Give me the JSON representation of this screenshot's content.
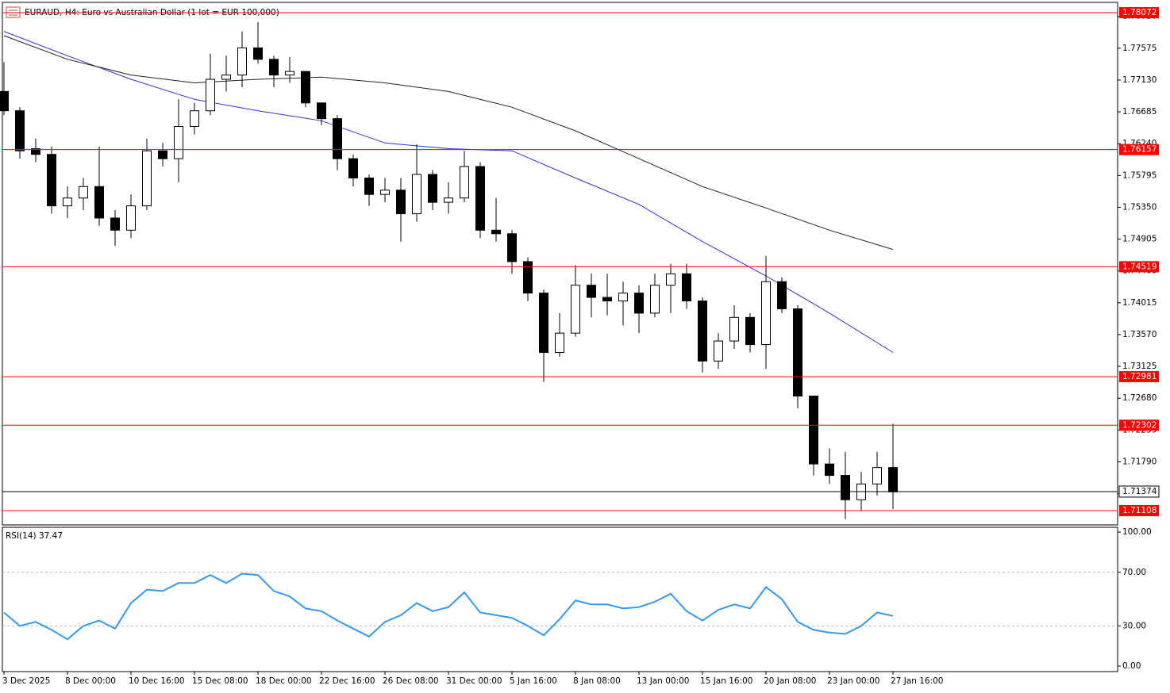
{
  "chart_data": [
    {
      "type": "candlestick",
      "title": "EURAUD, H4:  Euro vs Australian Dollar (1 lot = EUR 100,000)",
      "xlim": [
        -0.1,
        70.15
      ],
      "ylim": [
        1.70908,
        1.78216
      ],
      "yticks": [
        {
          "value": 1.7802,
          "label": "1.78020"
        },
        1.77575,
        {
          "value": 1.7713,
          "label": "1.77130"
        },
        1.76685,
        {
          "value": 1.7624,
          "label": "1.76240"
        },
        1.75795,
        {
          "value": 1.7535,
          "label": "1.75350"
        },
        1.74905,
        {
          "value": 1.7446,
          "label": "1.74460"
        },
        1.74015,
        {
          "value": 1.7357,
          "label": "1.73570"
        },
        1.73125,
        {
          "value": 1.7268,
          "label": "1.72680"
        },
        1.72235,
        {
          "value": 1.7179,
          "label": "1.71790"
        },
        1.71345
      ],
      "xticks": [
        {
          "value": 0,
          "label": "3 Dec 2025"
        },
        {
          "value": 4,
          "label": "8 Dec 00:00"
        },
        {
          "value": 8,
          "label": "10 Dec 16:00"
        },
        {
          "value": 12,
          "label": "15 Dec 08:00"
        },
        {
          "value": 16,
          "label": "18 Dec 00:00"
        },
        {
          "value": 20,
          "label": "22 Dec 16:00"
        },
        {
          "value": 24,
          "label": "26 Dec 08:00"
        },
        {
          "value": 28,
          "label": "31 Dec 00:00"
        },
        {
          "value": 32,
          "label": "5 Jan 16:00"
        },
        {
          "value": 36,
          "label": "8 Jan 08:00"
        },
        {
          "value": 40,
          "label": "13 Jan 00:00"
        },
        {
          "value": 44,
          "label": "15 Jan 16:00"
        },
        {
          "value": 48,
          "label": "20 Jan 08:00"
        },
        {
          "value": 52,
          "label": "23 Jan 00:00"
        },
        {
          "value": 56,
          "label": "27 Jan 16:00"
        }
      ],
      "ohlc": [
        [
          1.7697,
          1.7738,
          1.7664,
          1.767
        ],
        [
          1.767,
          1.7675,
          1.7603,
          1.7614
        ],
        [
          1.7617,
          1.7631,
          1.7598,
          1.7609
        ],
        [
          1.7609,
          1.762,
          1.7526,
          1.7537
        ],
        [
          1.7537,
          1.7564,
          1.752,
          1.7548
        ],
        [
          1.7548,
          1.7576,
          1.7531,
          1.7564
        ],
        [
          1.7564,
          1.762,
          1.7509,
          1.752
        ],
        [
          1.752,
          1.7531,
          1.7481,
          1.7503
        ],
        [
          1.7503,
          1.7553,
          1.7492,
          1.7537
        ],
        [
          1.7537,
          1.7631,
          1.7531,
          1.7614
        ],
        [
          1.7614,
          1.7625,
          1.7592,
          1.7603
        ],
        [
          1.7603,
          1.7686,
          1.757,
          1.7648
        ],
        [
          1.7648,
          1.7681,
          1.7637,
          1.767
        ],
        [
          1.767,
          1.775,
          1.7664,
          1.7714
        ],
        [
          1.7714,
          1.7747,
          1.7697,
          1.772
        ],
        [
          1.772,
          1.7781,
          1.7703,
          1.7758
        ],
        [
          1.7758,
          1.7794,
          1.7736,
          1.7742
        ],
        [
          1.7742,
          1.7747,
          1.7703,
          1.772
        ],
        [
          1.772,
          1.7745,
          1.7709,
          1.7725
        ],
        [
          1.7725,
          1.7725,
          1.7675,
          1.7681
        ],
        [
          1.7681,
          1.7681,
          1.765,
          1.7659
        ],
        [
          1.7659,
          1.7664,
          1.7587,
          1.7603
        ],
        [
          1.7603,
          1.7609,
          1.7564,
          1.7576
        ],
        [
          1.7576,
          1.7581,
          1.7537,
          1.7553
        ],
        [
          1.7553,
          1.7576,
          1.7542,
          1.7559
        ],
        [
          1.7559,
          1.7576,
          1.7487,
          1.7526
        ],
        [
          1.7526,
          1.7623,
          1.7515,
          1.7581
        ],
        [
          1.7581,
          1.7587,
          1.7531,
          1.7542
        ],
        [
          1.7542,
          1.757,
          1.7526,
          1.7548
        ],
        [
          1.7548,
          1.7614,
          1.7542,
          1.7592
        ],
        [
          1.7592,
          1.7598,
          1.7492,
          1.7503
        ],
        [
          1.7503,
          1.7548,
          1.7487,
          1.7498
        ],
        [
          1.7498,
          1.7503,
          1.7442,
          1.7459
        ],
        [
          1.7459,
          1.7465,
          1.7404,
          1.7415
        ],
        [
          1.7415,
          1.742,
          1.7291,
          1.7332
        ],
        [
          1.7332,
          1.7387,
          1.7326,
          1.7359
        ],
        [
          1.7359,
          1.7454,
          1.7354,
          1.7426
        ],
        [
          1.7426,
          1.7442,
          1.7381,
          1.7409
        ],
        [
          1.7409,
          1.7442,
          1.7384,
          1.7404
        ],
        [
          1.7404,
          1.7431,
          1.737,
          1.7415
        ],
        [
          1.7415,
          1.7426,
          1.7359,
          1.7387
        ],
        [
          1.7387,
          1.7442,
          1.7381,
          1.7426
        ],
        [
          1.7426,
          1.7456,
          1.7387,
          1.7442
        ],
        [
          1.7442,
          1.7456,
          1.7393,
          1.7404
        ],
        [
          1.7404,
          1.7409,
          1.7304,
          1.732
        ],
        [
          1.732,
          1.7359,
          1.7309,
          1.7348
        ],
        [
          1.7348,
          1.7398,
          1.7337,
          1.7381
        ],
        [
          1.7381,
          1.7387,
          1.7332,
          1.7343
        ],
        [
          1.7343,
          1.7467,
          1.7309,
          1.7431
        ],
        [
          1.7431,
          1.7437,
          1.7387,
          1.7393
        ],
        [
          1.7393,
          1.7398,
          1.7254,
          1.7271
        ],
        [
          1.7271,
          1.7271,
          1.716,
          1.7176
        ],
        [
          1.7176,
          1.7198,
          1.7148,
          1.716
        ],
        [
          1.716,
          1.7193,
          1.7099,
          1.7126
        ],
        [
          1.7126,
          1.7165,
          1.711,
          1.7148
        ],
        [
          1.7148,
          1.7193,
          1.7132,
          1.7171
        ],
        [
          1.7171,
          1.7232,
          1.7113,
          1.7137
        ]
      ],
      "series": [
        {
          "color": "#2f2fe0",
          "x": [
            0,
            4,
            8,
            12,
            16,
            20,
            24,
            28,
            32,
            36,
            40,
            44,
            48,
            52,
            56
          ],
          "values": [
            1.7781,
            1.7747,
            1.7714,
            1.7686,
            1.767,
            1.7656,
            1.7625,
            1.7617,
            1.7614,
            1.7576,
            1.7539,
            1.7487,
            1.7439,
            1.7387,
            1.7332
          ]
        },
        {
          "color": "#222222",
          "x": [
            0,
            4,
            8,
            12,
            16,
            20,
            24,
            28,
            32,
            36,
            40,
            44,
            48,
            52,
            56
          ],
          "values": [
            1.7775,
            1.7742,
            1.772,
            1.7709,
            1.7714,
            1.7717,
            1.7709,
            1.7697,
            1.7675,
            1.7642,
            1.7603,
            1.7564,
            1.7534,
            1.7503,
            1.7476
          ]
        }
      ],
      "levels": [
        {
          "value": 1.78072,
          "color": "#ff0000"
        },
        {
          "value": 1.76157,
          "color": "#ff0000"
        },
        {
          "value": 1.74519,
          "color": "#ff0000"
        },
        {
          "value": 1.72981,
          "color": "#ff0000"
        },
        {
          "value": 1.72302,
          "color": "#ff0000"
        },
        {
          "value": 1.71108,
          "color": "#ff0000"
        }
      ],
      "current_price": 1.71374
    },
    {
      "type": "line",
      "title": "RSI(14) 37.47",
      "color": "#3399ee",
      "xlim": [
        -0.1,
        70.15
      ],
      "ylim": [
        -4.1,
        103.6
      ],
      "yticks": [
        {
          "value": 100,
          "label": "100.00"
        },
        {
          "value": 70,
          "label": "70.00"
        },
        {
          "value": 30,
          "label": "30.00"
        },
        {
          "value": 0,
          "label": "0.00"
        }
      ],
      "grid_levels": [
        70,
        30
      ],
      "values": [
        40,
        30,
        33,
        27,
        20,
        30,
        34,
        28,
        47,
        57,
        56,
        62,
        62,
        68,
        62,
        69,
        68,
        56,
        52,
        43,
        41,
        34,
        28,
        22,
        33,
        38,
        47,
        41,
        44,
        55,
        40,
        38,
        36,
        30,
        23,
        35,
        49,
        46,
        46,
        43,
        44,
        48,
        54,
        41,
        34,
        42,
        46,
        43,
        59,
        50,
        33,
        27,
        25,
        24,
        30,
        40,
        37.47
      ]
    }
  ]
}
